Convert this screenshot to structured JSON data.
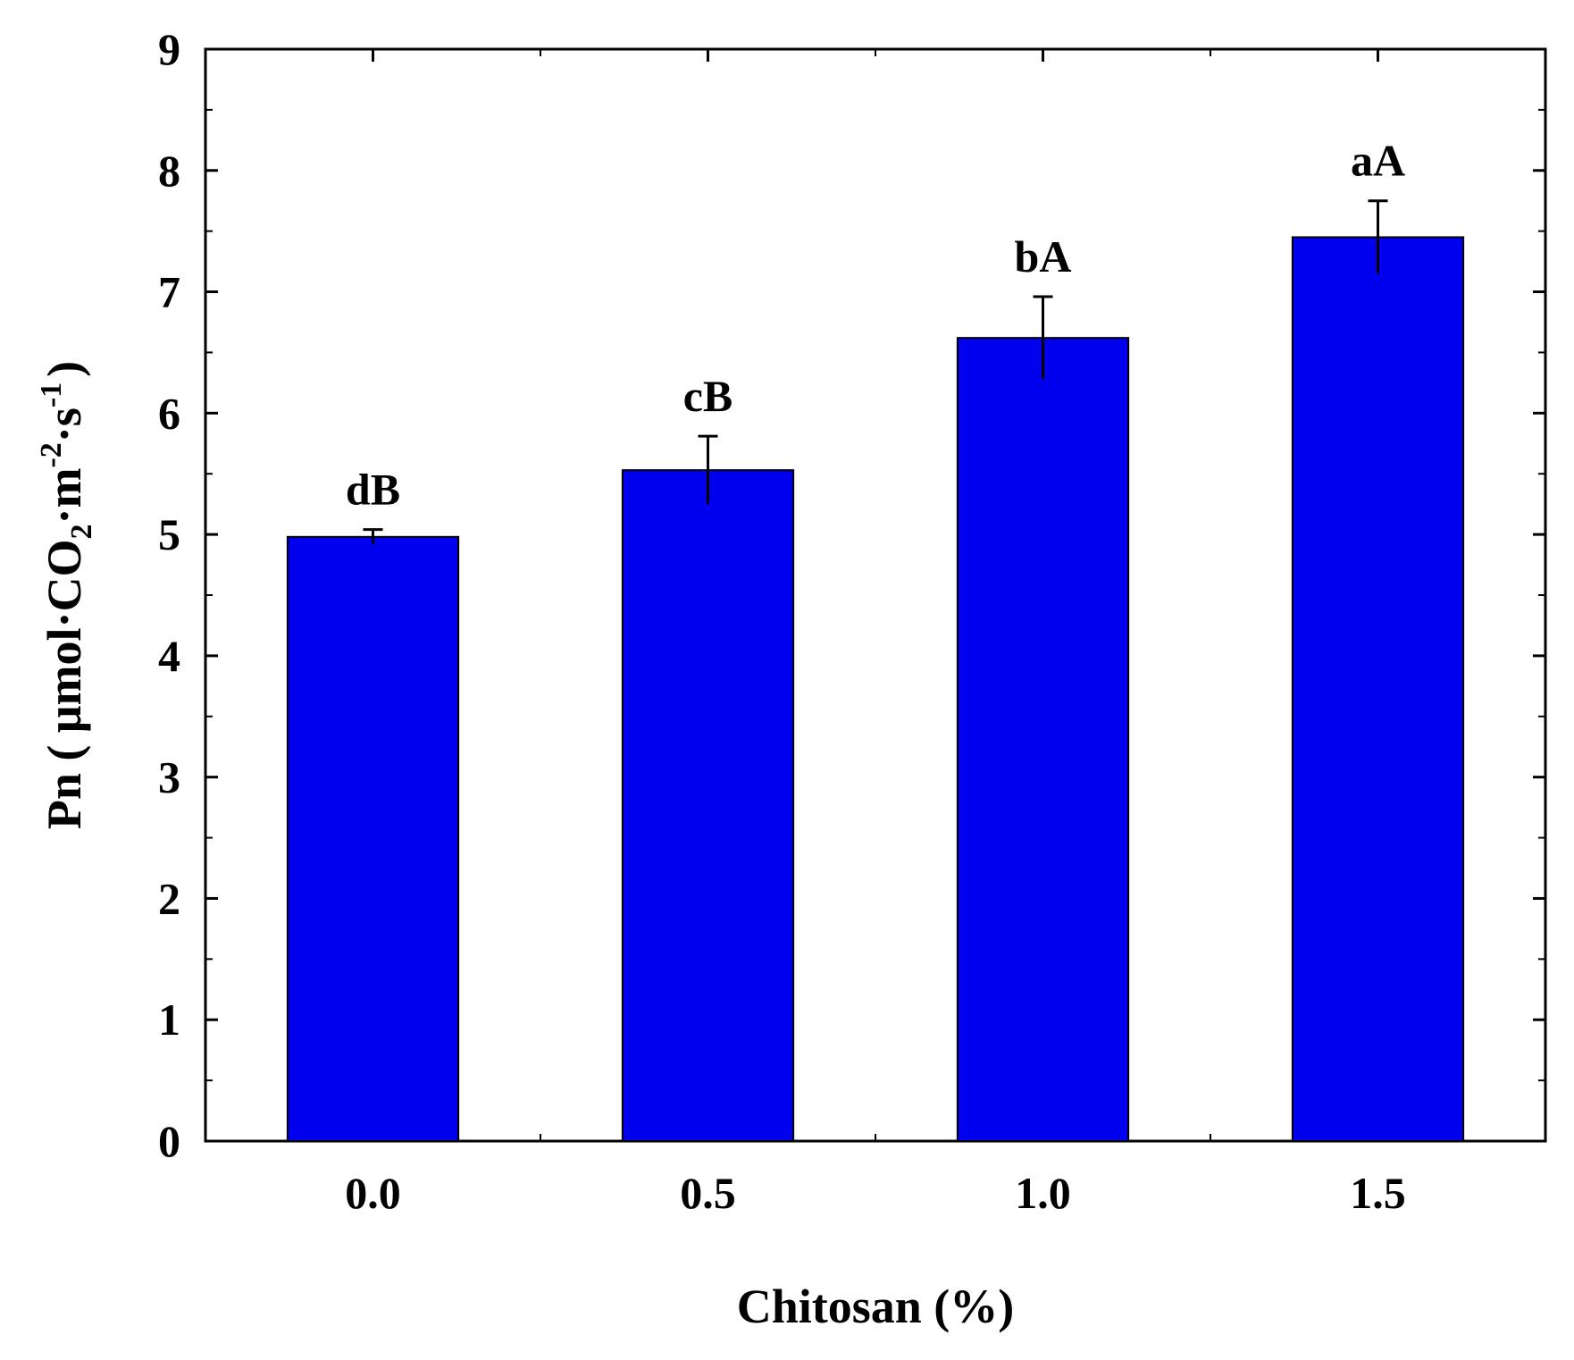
{
  "chart_data": {
    "type": "bar",
    "categories": [
      "0.0",
      "0.5",
      "1.0",
      "1.5"
    ],
    "values": [
      4.98,
      5.53,
      6.62,
      7.45
    ],
    "errors": [
      0.06,
      0.28,
      0.34,
      0.3
    ],
    "bar_labels": [
      "dB",
      "cB",
      "bA",
      "aA"
    ],
    "bar_color": "#0000ee",
    "xlabel": "Chitosan (%)",
    "ylabel": {
      "prefix": "Pn ( μmol·CO",
      "sub": "2",
      "mid1": "·m",
      "sup1": "-2",
      "mid2": "·s",
      "sup2": "-1",
      "suffix": ")"
    },
    "yticks": [
      "0",
      "1",
      "2",
      "3",
      "4",
      "5",
      "6",
      "7",
      "8",
      "9"
    ],
    "ylim": [
      0,
      9
    ],
    "grid": false,
    "legend": "none"
  }
}
